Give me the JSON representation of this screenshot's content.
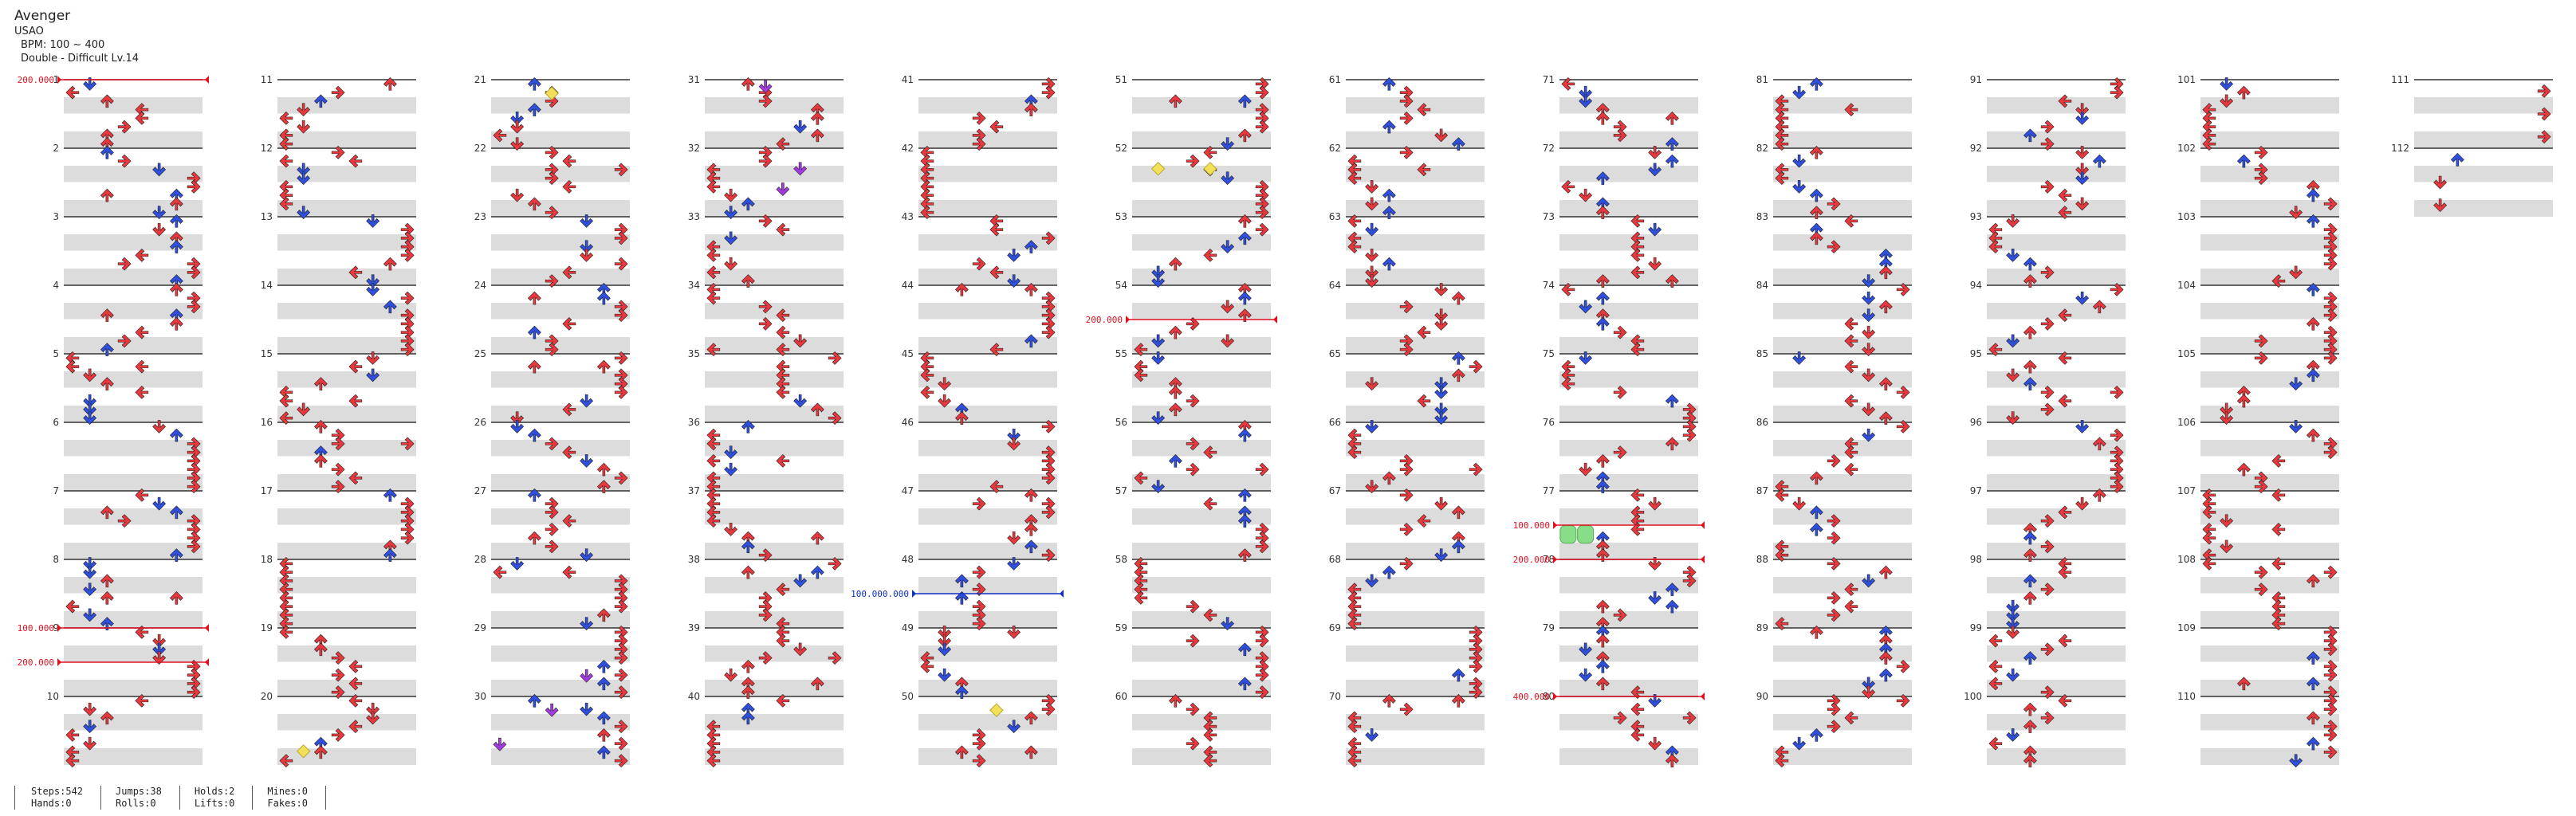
{
  "song": {
    "title": "Avenger",
    "artist": "USAO",
    "bpm": "BPM: 100 ~ 400",
    "difficulty": "Double - Difficult  Lv.14"
  },
  "stats": [
    {
      "a": "Steps:542",
      "b": "Hands:0"
    },
    {
      "a": "Jumps:38",
      "b": "Rolls:0"
    },
    {
      "a": "Holds:2",
      "b": "Lifts:0"
    },
    {
      "a": "Mines:0",
      "b": "Fakes:0"
    }
  ],
  "chart": {
    "total_measures": 112,
    "measures_per_column": 10,
    "bpm_changes": [
      {
        "measure": 1,
        "label": "200.000"
      },
      {
        "measure": 9,
        "label": "100.000"
      },
      {
        "measure": 9.5,
        "label": "200.000"
      },
      {
        "measure": 54.5,
        "label": "200.000"
      },
      {
        "measure": 48.5,
        "label": "100.000.000"
      },
      {
        "measure": 77.5,
        "label": "100.000"
      },
      {
        "measure": 78,
        "label": "200.000"
      },
      {
        "measure": 80,
        "label": "400.000"
      }
    ],
    "special_notes": [
      {
        "measure": 21.2,
        "lane": 3,
        "kind": "yellow"
      },
      {
        "measure": 20.8,
        "lane": 1,
        "kind": "yellow"
      },
      {
        "measure": 52.3,
        "lane": 1,
        "kind": "yellow"
      },
      {
        "measure": 52.3,
        "lane": 4,
        "kind": "yellow"
      },
      {
        "measure": 50.2,
        "lane": 4,
        "kind": "yellow"
      },
      {
        "measure": 31.1,
        "lane": 3,
        "kind": "purple"
      },
      {
        "measure": 32.3,
        "lane": 5,
        "kind": "purple"
      },
      {
        "measure": 32.6,
        "lane": 4,
        "kind": "purple"
      },
      {
        "measure": 29.7,
        "lane": 5,
        "kind": "purple"
      },
      {
        "measure": 30.2,
        "lane": 3,
        "kind": "purple"
      },
      {
        "measure": 30.7,
        "lane": 0,
        "kind": "purple"
      },
      {
        "measure": 77.6,
        "lane": 0,
        "kind": "green"
      },
      {
        "measure": 77.6,
        "lane": 1,
        "kind": "green"
      }
    ],
    "colors": {
      "red": "#e8383d",
      "blue": "#2f4fe0",
      "purple": "#a43be0",
      "yellow": "#f2e05a",
      "green": "#88dd88",
      "bpm": "#e01020",
      "bpm_blue": "#1030c0"
    }
  }
}
